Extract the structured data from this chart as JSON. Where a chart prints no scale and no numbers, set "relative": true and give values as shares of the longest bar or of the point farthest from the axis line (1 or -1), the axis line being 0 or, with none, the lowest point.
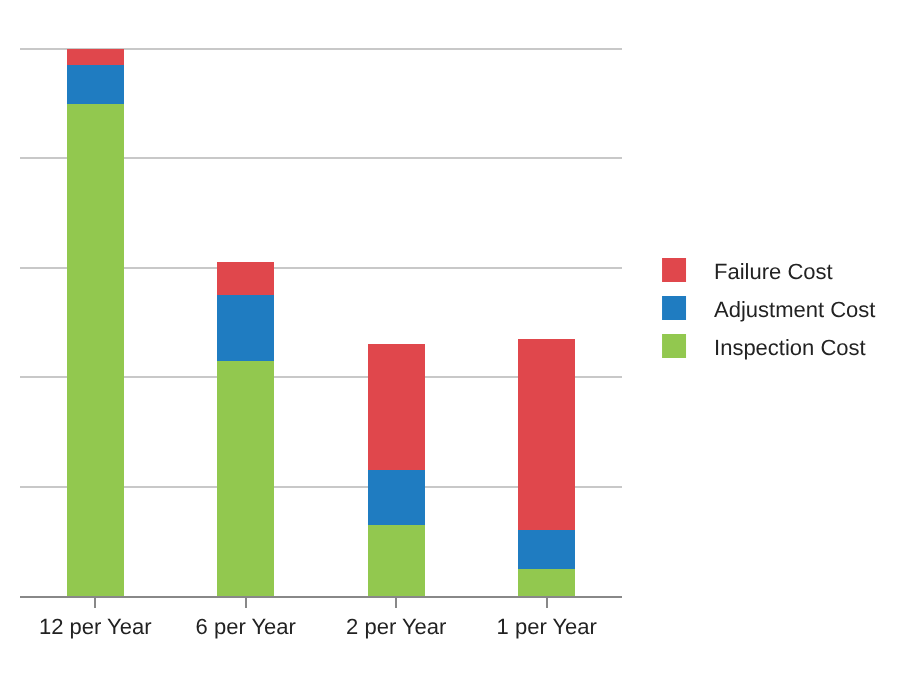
{
  "chart_data": {
    "type": "bar",
    "stacked": true,
    "relative": true,
    "grid": "y",
    "legend": "right",
    "categories": [
      "12 per Year",
      "6 per Year",
      "2 per Year",
      "1 per Year"
    ],
    "series": [
      {
        "name": "Inspection Cost",
        "color": "#92c84f",
        "values": [
          0.9,
          0.43,
          0.13,
          0.05
        ]
      },
      {
        "name": "Adjustment Cost",
        "color": "#1f7cc1",
        "values": [
          0.07,
          0.12,
          0.1,
          0.07
        ]
      },
      {
        "name": "Failure Cost",
        "color": "#e0474c",
        "values": [
          0.03,
          0.06,
          0.23,
          0.35
        ]
      }
    ]
  }
}
